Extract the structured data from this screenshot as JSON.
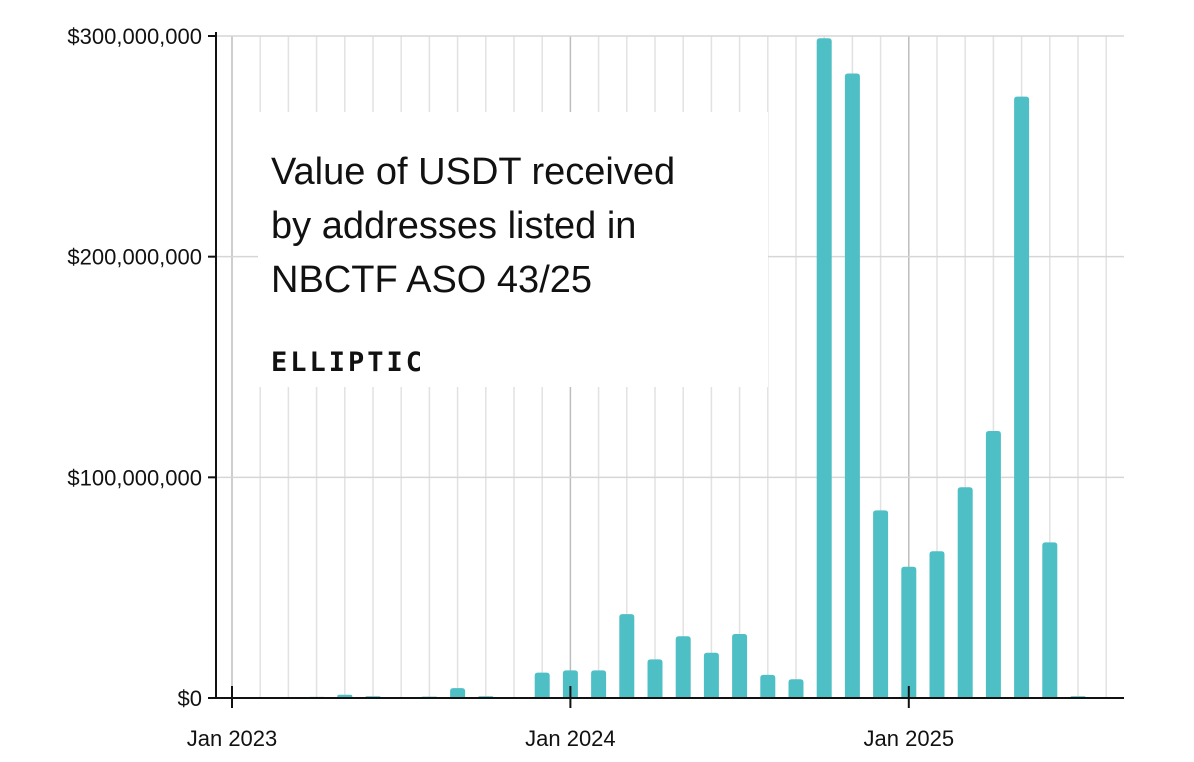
{
  "chart_data": {
    "type": "bar",
    "title_lines": [
      "Value of USDT received",
      "by addresses listed in",
      "NBCTF ASO 43/25"
    ],
    "brand": "ELLIPTIC",
    "xlabel": "",
    "ylabel": "",
    "ylim": [
      0,
      300000000
    ],
    "y_ticks": [
      {
        "value": 0,
        "label": "$0"
      },
      {
        "value": 100000000,
        "label": "$100,000,000"
      },
      {
        "value": 200000000,
        "label": "$200,000,000"
      },
      {
        "value": 300000000,
        "label": "$300,000,000"
      }
    ],
    "x_ticks": [
      {
        "month_index": 0,
        "label": "Jan 2023"
      },
      {
        "month_index": 12,
        "label": "Jan 2024"
      },
      {
        "month_index": 24,
        "label": "Jan 2025"
      }
    ],
    "categories": [
      "2023-01",
      "2023-02",
      "2023-03",
      "2023-04",
      "2023-05",
      "2023-06",
      "2023-07",
      "2023-08",
      "2023-09",
      "2023-10",
      "2023-11",
      "2023-12",
      "2024-01",
      "2024-02",
      "2024-03",
      "2024-04",
      "2024-05",
      "2024-06",
      "2024-07",
      "2024-08",
      "2024-09",
      "2024-10",
      "2024-11",
      "2024-12",
      "2025-01",
      "2025-02",
      "2025-03",
      "2025-04",
      "2025-05",
      "2025-06",
      "2025-07"
    ],
    "values": [
      0,
      0,
      0,
      500000,
      1500000,
      800000,
      0,
      600000,
      4500000,
      800000,
      0,
      11500000,
      12500000,
      12500000,
      38000000,
      17500000,
      28000000,
      20500000,
      29000000,
      10500000,
      8500000,
      299000000,
      283000000,
      85000000,
      59500000,
      66500000,
      95500000,
      121000000,
      272500000,
      70500000,
      800000
    ],
    "bar_color": "#4FBFC6",
    "grid": true
  }
}
